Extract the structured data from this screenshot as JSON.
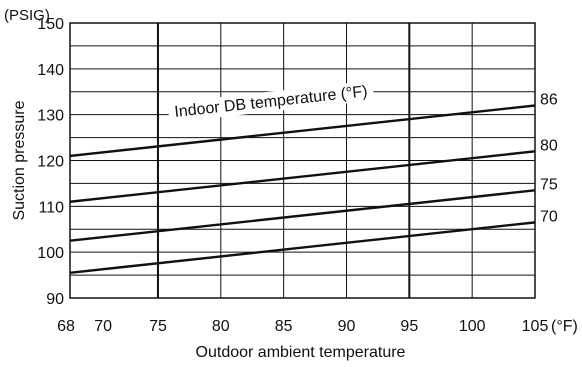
{
  "chart_data": {
    "type": "line",
    "title": "",
    "xlabel": "Outdoor ambient temperature",
    "ylabel": "Suction pressure",
    "y_unit": "(PSIG)",
    "x_unit_suffix": "(°F)",
    "xlim": [
      68,
      105
    ],
    "ylim": [
      90,
      150
    ],
    "grid": true,
    "x_ticks": [
      {
        "value": 68,
        "label": "68"
      },
      {
        "value": 70,
        "label": "70"
      },
      {
        "value": 75,
        "label": "75"
      },
      {
        "value": 80,
        "label": "80"
      },
      {
        "value": 85,
        "label": "85"
      },
      {
        "value": 90,
        "label": "90"
      },
      {
        "value": 95,
        "label": "95"
      },
      {
        "value": 100,
        "label": "100"
      },
      {
        "value": 105,
        "label": "105"
      }
    ],
    "y_ticks": [
      {
        "value": 90,
        "label": "90"
      },
      {
        "value": 100,
        "label": "100"
      },
      {
        "value": 110,
        "label": "110"
      },
      {
        "value": 120,
        "label": "120"
      },
      {
        "value": 130,
        "label": "130"
      },
      {
        "value": 140,
        "label": "140"
      },
      {
        "value": 150,
        "label": "150"
      }
    ],
    "x_gridlines": [
      68,
      75,
      80,
      85,
      90,
      95,
      100,
      105
    ],
    "y_gridlines": [
      90,
      95,
      100,
      105,
      110,
      115,
      120,
      125,
      130,
      135,
      140,
      145,
      150
    ],
    "bold_x_gridlines": [
      75,
      95
    ],
    "annotation": "Indoor DB temperature (°F)",
    "series": [
      {
        "name": "86",
        "x": [
          68,
          105
        ],
        "y": [
          121,
          132
        ]
      },
      {
        "name": "80",
        "x": [
          68,
          105
        ],
        "y": [
          111,
          122
        ]
      },
      {
        "name": "75",
        "x": [
          68,
          105
        ],
        "y": [
          102.5,
          113.5
        ]
      },
      {
        "name": "70",
        "x": [
          68,
          105
        ],
        "y": [
          95.5,
          106.5
        ]
      }
    ]
  }
}
